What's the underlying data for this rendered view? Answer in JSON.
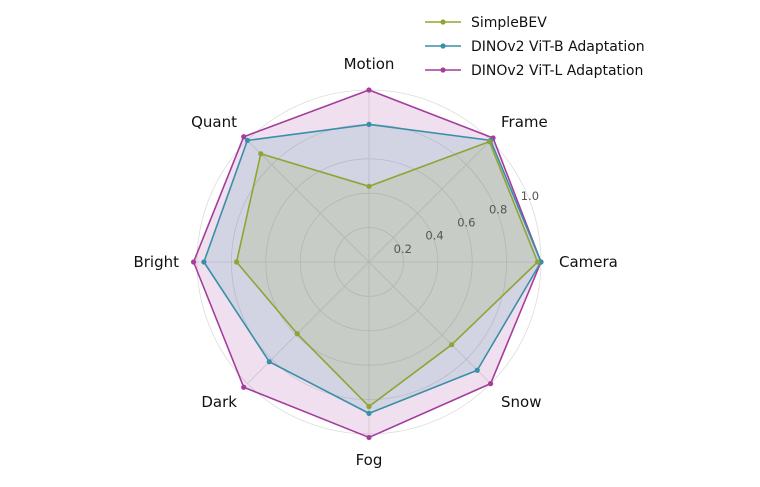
{
  "chart_data": {
    "type": "radar",
    "axes": [
      "Camera",
      "Frame",
      "Motion",
      "Quant",
      "Bright",
      "Dark",
      "Fog",
      "Snow"
    ],
    "radial_ticks": [
      "0.2",
      "0.4",
      "0.6",
      "0.8",
      "1.0"
    ],
    "radial_tick_values": [
      0.2,
      0.4,
      0.6,
      0.8,
      1.0
    ],
    "rlim": [
      0,
      1.0
    ],
    "grid": true,
    "legend_position": "top-right",
    "series": [
      {
        "name": "SimpleBEV",
        "color": "#8ea535",
        "values": [
          0.98,
          0.99,
          0.44,
          0.89,
          0.77,
          0.59,
          0.84,
          0.68
        ]
      },
      {
        "name": "DINOv2 ViT-B Adaptation",
        "color": "#3a8fa8",
        "values": [
          1.0,
          1.0,
          0.8,
          1.0,
          0.96,
          0.82,
          0.88,
          0.89
        ]
      },
      {
        "name": "DINOv2 ViT-L Adaptation",
        "color": "#a43d9b",
        "values": [
          1.0,
          1.02,
          1.0,
          1.03,
          1.02,
          1.03,
          1.02,
          1.0
        ]
      }
    ]
  }
}
